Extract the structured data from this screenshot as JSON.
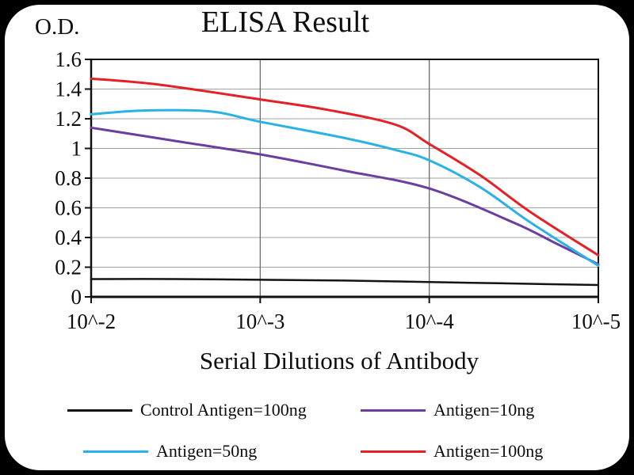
{
  "frame": {
    "background_color": "#000000",
    "card_color": "#ffffff"
  },
  "chart_data": {
    "type": "line",
    "title": "ELISA Result",
    "ylabel": "O.D.",
    "xlabel": "Serial Dilutions of Antibody",
    "x_ticklabels": [
      "10^-2",
      "10^-3",
      "10^-4",
      "10^-5"
    ],
    "y_ticklabels": [
      "0",
      "0.2",
      "0.4",
      "0.6",
      "0.8",
      "1",
      "1.2",
      "1.4",
      "1.6"
    ],
    "ylim": [
      0,
      1.6
    ],
    "y_step": 0.2,
    "x_exponent_range": [
      0,
      3
    ],
    "grid": {
      "horizontal": true,
      "vertical_at_ticks": [
        1,
        2
      ],
      "h_color": "#a3a3a3",
      "v_color": "#6b6b6b"
    },
    "legend_position": "bottom",
    "series": [
      {
        "name": "Control Antigen=100ng",
        "color": "#141414",
        "width": 2.5,
        "points": [
          [
            0,
            0.12
          ],
          [
            0.5,
            0.12
          ],
          [
            1,
            0.115
          ],
          [
            1.5,
            0.11
          ],
          [
            2,
            0.1
          ],
          [
            2.5,
            0.09
          ],
          [
            3,
            0.08
          ]
        ]
      },
      {
        "name": "Antigen=10ng",
        "color": "#6a3fa0",
        "width": 3,
        "points": [
          [
            0,
            1.14
          ],
          [
            0.5,
            1.05
          ],
          [
            1,
            0.96
          ],
          [
            1.5,
            0.85
          ],
          [
            2,
            0.73
          ],
          [
            2.5,
            0.5
          ],
          [
            2.75,
            0.36
          ],
          [
            3,
            0.22
          ]
        ]
      },
      {
        "name": "Antigen=50ng",
        "color": "#2ab1e6",
        "width": 3,
        "points": [
          [
            0,
            1.23
          ],
          [
            0.3,
            1.255
          ],
          [
            0.7,
            1.25
          ],
          [
            1,
            1.18
          ],
          [
            1.5,
            1.07
          ],
          [
            1.8,
            0.99
          ],
          [
            2,
            0.92
          ],
          [
            2.3,
            0.74
          ],
          [
            2.6,
            0.5
          ],
          [
            3,
            0.21
          ]
        ]
      },
      {
        "name": "Antigen=100ng",
        "color": "#e32126",
        "width": 3,
        "points": [
          [
            0,
            1.47
          ],
          [
            0.4,
            1.43
          ],
          [
            1,
            1.33
          ],
          [
            1.4,
            1.26
          ],
          [
            1.8,
            1.16
          ],
          [
            2,
            1.03
          ],
          [
            2.3,
            0.82
          ],
          [
            2.6,
            0.57
          ],
          [
            3,
            0.28
          ]
        ]
      }
    ]
  },
  "legend": {
    "items": [
      {
        "label": "Control Antigen=100ng",
        "color": "#141414"
      },
      {
        "label": "Antigen=10ng",
        "color": "#6a3fa0"
      },
      {
        "label": "Antigen=50ng",
        "color": "#2ab1e6"
      },
      {
        "label": "Antigen=100ng",
        "color": "#e32126"
      }
    ]
  }
}
